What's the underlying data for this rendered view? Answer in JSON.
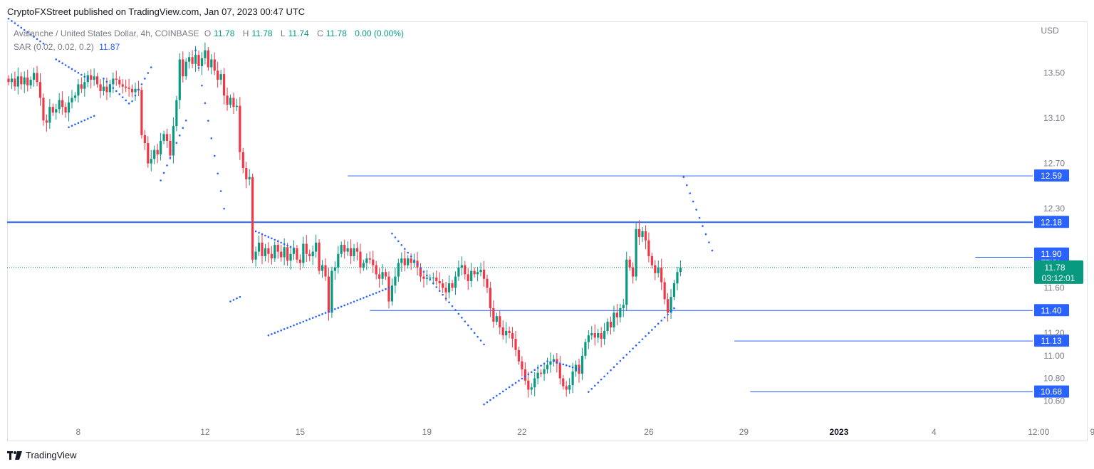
{
  "header": {
    "published_line": "CryptoFXStreet published on TradingView.com, Jan 07, 2023 00:47 UTC"
  },
  "legend": {
    "symbol_line": "Avalanche / United States Dollar, 4h, COINBASE",
    "o_label": "O",
    "o_value": "11.78",
    "h_label": "H",
    "h_value": "11.78",
    "l_label": "L",
    "l_value": "11.74",
    "c_label": "C",
    "c_value": "11.78",
    "change": "0.00 (0.00%)",
    "sar_label": "SAR (0.02, 0.02, 0.2)",
    "sar_value": "11.87"
  },
  "footer": {
    "brand": "TradingView"
  },
  "colors": {
    "up": "#089981",
    "down": "#f23645",
    "sar": "#2962ff",
    "level": "#2962ff",
    "axis_text": "#787b86"
  },
  "chart_data": {
    "type": "candlestick",
    "currency_label": "USD",
    "ylim": [
      10.42,
      13.95
    ],
    "xlim": [
      0,
      352
    ],
    "y_ticks": [
      "13.50",
      "13.10",
      "12.70",
      "12.30",
      "11.60",
      "11.20",
      "11.00",
      "10.80",
      "10.60"
    ],
    "x_ticks": [
      {
        "label": "8",
        "x": 22
      },
      {
        "label": "12",
        "x": 62
      },
      {
        "label": "15",
        "x": 92
      },
      {
        "label": "19",
        "x": 132
      },
      {
        "label": "22",
        "x": 162
      },
      {
        "label": "26",
        "x": 202
      },
      {
        "label": "29",
        "x": 232
      },
      {
        "label": "2023",
        "x": 262,
        "bold": true
      },
      {
        "label": "4",
        "x": 292
      },
      {
        "label": "12:00",
        "x": 325
      },
      {
        "label": "9",
        "x": 342
      }
    ],
    "levels": [
      {
        "value": 12.59,
        "label": "12.59",
        "x_start": 107
      },
      {
        "value": 12.18,
        "label": "12.18",
        "x_start": 0,
        "thick": true
      },
      {
        "value": 11.4,
        "label": "11.40",
        "x_start": 114
      },
      {
        "value": 11.13,
        "label": "11.13",
        "x_start": 229
      },
      {
        "value": 10.68,
        "label": "10.68",
        "x_start": 234
      },
      {
        "value": 11.87,
        "label": "11.87",
        "x_start": 305,
        "small": true
      },
      {
        "value": 11.9,
        "label": "11.90",
        "label_only": true
      }
    ],
    "current_price": {
      "value": 11.78,
      "label": "11.78",
      "countdown": "03:12:01"
    },
    "sar_latest": 11.87,
    "closes": [
      13.42,
      13.45,
      13.38,
      13.47,
      13.4,
      13.46,
      13.39,
      13.44,
      13.5,
      13.42,
      13.28,
      13.08,
      13.06,
      13.2,
      13.15,
      13.18,
      13.26,
      13.2,
      13.15,
      13.24,
      13.28,
      13.3,
      13.4,
      13.36,
      13.42,
      13.48,
      13.44,
      13.47,
      13.4,
      13.34,
      13.38,
      13.33,
      13.4,
      13.45,
      13.44,
      13.4,
      13.38,
      13.37,
      13.36,
      13.33,
      13.36,
      13.35,
      12.95,
      12.88,
      12.7,
      12.74,
      12.82,
      12.78,
      12.9,
      12.96,
      12.9,
      12.77,
      13.03,
      13.26,
      13.62,
      13.47,
      13.6,
      13.64,
      13.58,
      13.66,
      13.56,
      13.63,
      13.7,
      13.55,
      13.62,
      13.52,
      13.44,
      13.49,
      13.3,
      13.22,
      13.28,
      13.2,
      13.21,
      12.8,
      12.66,
      12.56,
      12.58,
      11.85,
      11.92,
      12.0,
      11.88,
      11.95,
      11.9,
      11.86,
      11.98,
      11.92,
      11.87,
      11.96,
      11.84,
      11.9,
      11.95,
      11.85,
      11.82,
      11.99,
      11.9,
      11.88,
      11.92,
      12.0,
      11.75,
      11.8,
      11.7,
      11.38,
      11.75,
      11.78,
      11.9,
      11.98,
      11.92,
      11.95,
      11.88,
      11.95,
      11.92,
      11.78,
      11.82,
      11.86,
      11.85,
      11.8,
      11.72,
      11.68,
      11.74,
      11.7,
      11.48,
      11.62,
      11.7,
      11.82,
      11.86,
      11.8,
      11.86,
      11.82,
      11.84,
      11.78,
      11.7,
      11.68,
      11.69,
      11.69,
      11.69,
      11.66,
      11.64,
      11.6,
      11.56,
      11.64,
      11.6,
      11.7,
      11.78,
      11.8,
      11.72,
      11.66,
      11.75,
      11.72,
      11.74,
      11.76,
      11.68,
      11.6,
      11.42,
      11.3,
      11.35,
      11.25,
      11.18,
      11.22,
      11.2,
      11.15,
      11.05,
      10.95,
      10.88,
      10.78,
      10.7,
      10.72,
      10.8,
      10.85,
      10.84,
      10.88,
      10.92,
      10.95,
      10.97,
      10.93,
      10.8,
      10.73,
      10.7,
      10.74,
      10.86,
      10.92,
      10.84,
      11.0,
      11.12,
      11.18,
      11.2,
      11.16,
      11.2,
      11.15,
      11.22,
      11.3,
      11.25,
      11.38,
      11.34,
      11.42,
      11.45,
      11.85,
      11.78,
      11.7,
      12.12,
      12.05,
      12.1,
      12.02,
      11.88,
      11.8,
      11.73,
      11.78,
      11.65,
      11.5,
      11.38,
      11.52,
      11.64,
      11.74,
      11.78
    ],
    "sar": [
      {
        "start": 0,
        "end": 11,
        "v0": 13.98,
        "v1": 13.76
      },
      {
        "start": 15,
        "end": 25,
        "v0": 13.62,
        "v1": 13.45
      },
      {
        "start": 19,
        "end": 27,
        "v0": 13.02,
        "v1": 13.12
      },
      {
        "start": 30,
        "end": 38,
        "v0": 13.45,
        "v1": 13.23
      },
      {
        "start": 39,
        "end": 45,
        "v0": 13.25,
        "v1": 13.55
      },
      {
        "start": 48,
        "end": 56,
        "v0": 12.55,
        "v1": 13.08
      },
      {
        "start": 59,
        "end": 68,
        "v0": 13.7,
        "v1": 12.3
      },
      {
        "start": 70,
        "end": 73,
        "v0": 11.48,
        "v1": 11.52
      },
      {
        "start": 78,
        "end": 90,
        "v0": 12.1,
        "v1": 11.95
      },
      {
        "start": 82,
        "end": 120,
        "v0": 11.18,
        "v1": 11.6
      },
      {
        "start": 121,
        "end": 150,
        "v0": 12.08,
        "v1": 11.1
      },
      {
        "start": 150,
        "end": 170,
        "v0": 10.57,
        "v1": 10.95
      },
      {
        "start": 172,
        "end": 180,
        "v0": 10.95,
        "v1": 10.88
      },
      {
        "start": 183,
        "end": 210,
        "v0": 10.68,
        "v1": 11.42
      },
      {
        "start": 213,
        "end": 222,
        "v0": 12.58,
        "v1": 11.93
      }
    ]
  }
}
